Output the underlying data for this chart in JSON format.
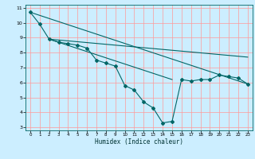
{
  "title": "",
  "xlabel": "Humidex (Indice chaleur)",
  "bg_color": "#cceeff",
  "grid_color": "#ff9999",
  "line_color": "#006666",
  "xlim": [
    -0.5,
    23.5
  ],
  "ylim": [
    2.8,
    11.2
  ],
  "yticks": [
    3,
    4,
    5,
    6,
    7,
    8,
    9,
    10,
    11
  ],
  "xticks": [
    0,
    1,
    2,
    3,
    4,
    5,
    6,
    7,
    8,
    9,
    10,
    11,
    12,
    13,
    14,
    15,
    16,
    17,
    18,
    19,
    20,
    21,
    22,
    23
  ],
  "series": [
    {
      "x": [
        0,
        1,
        2,
        3,
        4,
        5,
        6,
        7,
        8,
        9,
        10,
        11,
        12,
        13,
        14,
        15,
        16,
        17,
        18,
        19,
        20,
        21,
        22,
        23
      ],
      "y": [
        10.7,
        9.9,
        8.9,
        8.7,
        8.6,
        8.5,
        8.3,
        7.5,
        7.3,
        7.1,
        5.8,
        5.5,
        4.7,
        4.3,
        3.3,
        3.4,
        6.2,
        6.1,
        6.2,
        6.2,
        6.5,
        6.4,
        6.3,
        5.9
      ],
      "marker": "D",
      "markersize": 2.0,
      "linewidth": 0.8,
      "has_marker": true
    },
    {
      "x": [
        0,
        23
      ],
      "y": [
        10.7,
        5.9
      ],
      "marker": null,
      "markersize": 0,
      "linewidth": 0.8,
      "has_marker": false
    },
    {
      "x": [
        2,
        23
      ],
      "y": [
        8.9,
        7.7
      ],
      "marker": null,
      "markersize": 0,
      "linewidth": 0.8,
      "has_marker": false
    },
    {
      "x": [
        2,
        15
      ],
      "y": [
        8.9,
        6.2
      ],
      "marker": null,
      "markersize": 0,
      "linewidth": 0.8,
      "has_marker": false
    }
  ]
}
